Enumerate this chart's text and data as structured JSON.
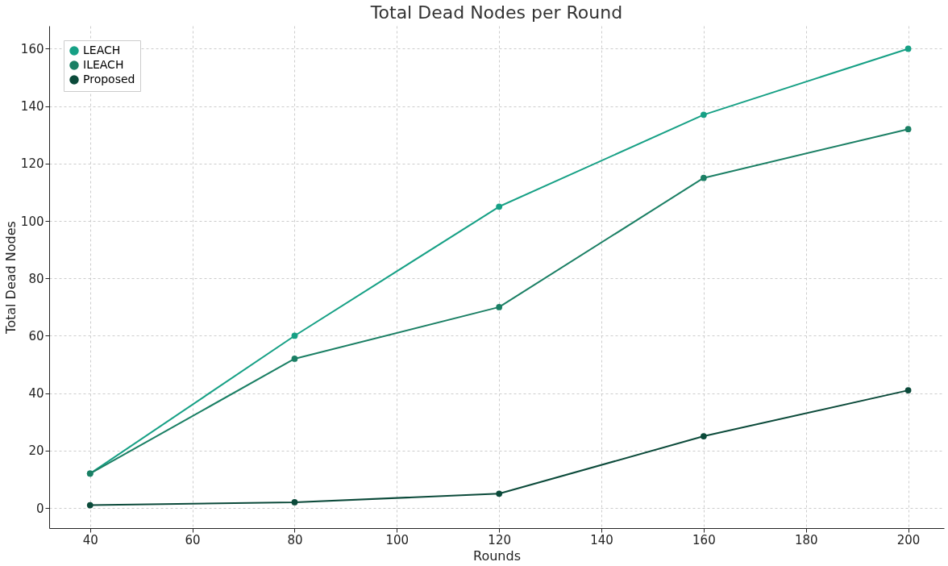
{
  "chart_data": {
    "type": "line",
    "title": "Total Dead Nodes per Round",
    "xlabel": "Rounds",
    "ylabel": "Total Dead Nodes",
    "x": [
      40,
      80,
      120,
      160,
      200
    ],
    "series": [
      {
        "name": "LEACH",
        "color": "#16a085",
        "values": [
          12,
          60,
          105,
          137,
          160
        ]
      },
      {
        "name": "ILEACH",
        "color": "#1a7f64",
        "values": [
          12,
          52,
          70,
          115,
          132
        ]
      },
      {
        "name": "Proposed",
        "color": "#0b4a3a",
        "values": [
          1,
          2,
          5,
          25,
          41
        ]
      }
    ],
    "xlim": [
      32,
      207
    ],
    "ylim": [
      -7,
      168
    ],
    "xticks": [
      40,
      60,
      80,
      100,
      120,
      140,
      160,
      180,
      200
    ],
    "yticks": [
      0,
      20,
      40,
      60,
      80,
      100,
      120,
      140,
      160
    ],
    "grid": true,
    "legend": "top left",
    "marker": "circle",
    "line_style": "solid"
  }
}
